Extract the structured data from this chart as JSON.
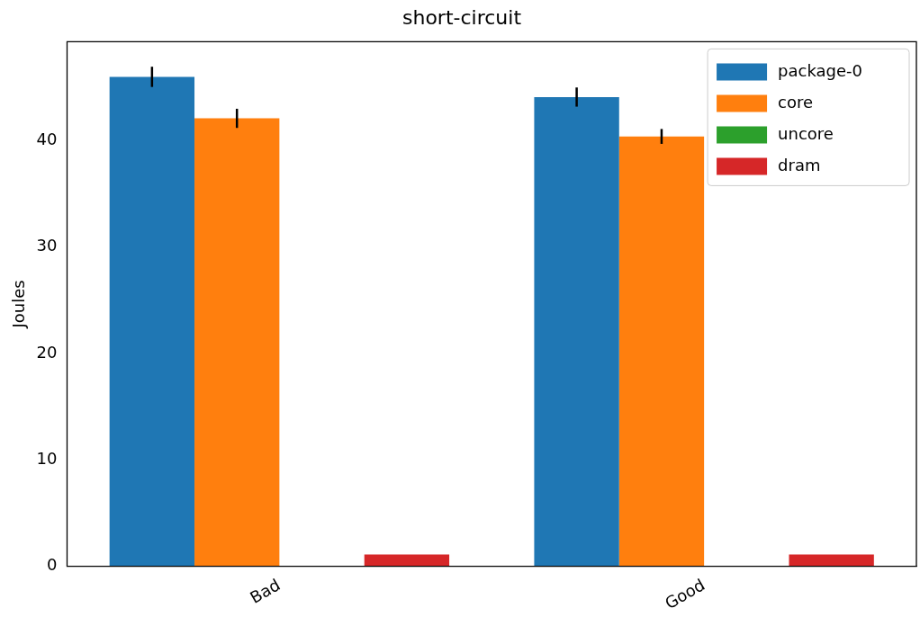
{
  "chart_data": {
    "type": "bar",
    "title": "short-circuit",
    "ylabel": "Joules",
    "categories": [
      "Bad",
      "Good"
    ],
    "series": [
      {
        "name": "package-0",
        "color": "#1f77b4",
        "values": [
          46.0,
          44.1
        ],
        "errors": [
          0.95,
          0.9
        ]
      },
      {
        "name": "core",
        "color": "#ff7f0e",
        "values": [
          42.1,
          40.4
        ],
        "errors": [
          0.9,
          0.7
        ]
      },
      {
        "name": "uncore",
        "color": "#2ca02c",
        "values": [
          0,
          0
        ]
      },
      {
        "name": "dram",
        "color": "#d62728",
        "values": [
          1.1,
          1.1
        ]
      }
    ],
    "ylim": [
      0,
      49.3
    ],
    "yticks": [
      0,
      10,
      20,
      30,
      40
    ],
    "grid": false,
    "legend": "top right"
  }
}
